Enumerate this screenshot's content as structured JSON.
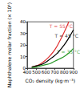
{
  "chart_data": {
    "type": "line",
    "x_label": "CO₂ density (kg·m⁻³)",
    "y_label": "Naphthalene molar fraction (× 10⁴)",
    "xlim": [
      400,
      900
    ],
    "xticks": [
      400,
      500,
      600,
      700,
      800,
      900
    ],
    "ylim": [
      0,
      40
    ],
    "yticks": [
      0,
      10,
      20,
      30,
      40
    ],
    "grid": false,
    "series": [
      {
        "name": "T = 55 °C",
        "color": "#e03030",
        "x": [
          450,
          500,
          550,
          600,
          650,
          700,
          750,
          800,
          850
        ],
        "values": [
          1,
          2,
          4,
          7,
          11,
          16,
          23,
          31,
          40
        ],
        "annotation": {
          "x": 640,
          "y": 36
        }
      },
      {
        "name": "T = 45 °C",
        "color": "#000000",
        "x": [
          450,
          500,
          550,
          600,
          650,
          700,
          750,
          800,
          850,
          900
        ],
        "values": [
          1,
          2,
          3,
          5,
          8,
          11,
          15,
          20,
          26,
          33
        ],
        "annotation": {
          "x": 700,
          "y": 28
        }
      },
      {
        "name": "T = 35 °C",
        "color": "#2a9a2a",
        "x": [
          450,
          500,
          550,
          600,
          650,
          700,
          750,
          800,
          850,
          900
        ],
        "values": [
          0.5,
          1,
          2,
          3,
          4,
          6,
          8,
          10,
          13,
          17
        ],
        "annotation": {
          "x": 720,
          "y": 14
        }
      }
    ]
  }
}
